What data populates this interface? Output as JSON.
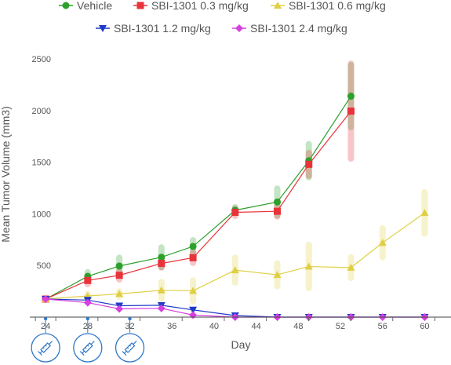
{
  "chart_data": {
    "type": "line",
    "xlabel": "Day",
    "ylabel": "Mean Tumor Volume (mm3)",
    "xlim": [
      22.5,
      62.5
    ],
    "ylim": [
      0,
      2600
    ],
    "x_ticks": [
      24,
      28,
      32,
      36,
      40,
      44,
      48,
      52,
      56,
      60
    ],
    "y_ticks": [
      500,
      1000,
      1500,
      2000,
      2500
    ],
    "grid": {
      "x": false,
      "y": false
    },
    "legend_position": "top",
    "dosing_days": [
      24,
      28,
      32
    ],
    "dosing_icon": "syringe-icon",
    "series": [
      {
        "name": "Vehicle",
        "color": "#2ca02c",
        "marker": "circle",
        "x": [
          24,
          28,
          31,
          35,
          38,
          42,
          46,
          49,
          53
        ],
        "y": [
          175,
          395,
          495,
          580,
          685,
          1035,
          1115,
          1515,
          2140
        ],
        "err": [
          0,
          40,
          80,
          95,
          60,
          30,
          130,
          160,
          300
        ]
      },
      {
        "name": "SBI-1301 0.3 mg/kg",
        "color": "#e8333a",
        "marker": "square",
        "x": [
          24,
          28,
          31,
          35,
          38,
          42,
          46,
          49,
          53
        ],
        "y": [
          175,
          355,
          405,
          520,
          575,
          1015,
          1025,
          1480,
          1995
        ],
        "err": [
          0,
          35,
          40,
          40,
          50,
          35,
          50,
          110,
          460
        ]
      },
      {
        "name": "SBI-1301 0.6 mg/kg",
        "color": "#e0cf45",
        "marker": "triangle-up",
        "x": [
          24,
          28,
          31,
          35,
          38,
          42,
          46,
          49,
          53,
          56,
          60
        ],
        "y": [
          175,
          205,
          225,
          260,
          255,
          455,
          410,
          490,
          480,
          720,
          1010
        ],
        "err": [
          0,
          20,
          25,
          80,
          100,
          120,
          110,
          210,
          100,
          140,
          200
        ]
      },
      {
        "name": "SBI-1301 1.2 mg/kg",
        "color": "#1f3ac8",
        "marker": "triangle-down",
        "x": [
          24,
          28,
          31,
          35,
          38,
          42,
          46,
          49,
          53,
          56,
          60
        ],
        "y": [
          175,
          165,
          110,
          115,
          70,
          15,
          0,
          0,
          0,
          0,
          0
        ],
        "err": [
          0,
          0,
          0,
          0,
          0,
          0,
          0,
          0,
          0,
          0,
          0
        ]
      },
      {
        "name": "SBI-1301 2.4 mg/kg",
        "color": "#d63fe0",
        "marker": "diamond",
        "x": [
          24,
          28,
          31,
          35,
          38,
          42,
          46,
          49,
          53,
          56,
          60
        ],
        "y": [
          175,
          140,
          80,
          85,
          20,
          0,
          0,
          0,
          0,
          0,
          0
        ],
        "err": [
          0,
          0,
          0,
          0,
          0,
          0,
          0,
          0,
          0,
          0,
          0
        ]
      }
    ]
  }
}
